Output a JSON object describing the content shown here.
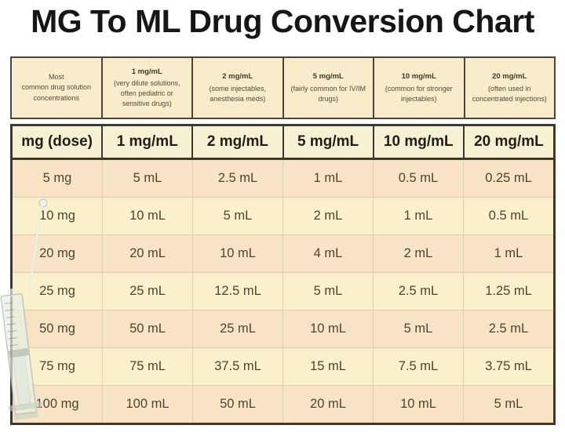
{
  "title": "MG To ML Drug Conversion Chart",
  "colors": {
    "background": "#ffffff",
    "title_text": "#161616",
    "description_bg": "#f8ecca",
    "header_bg": "#f7f1d4",
    "row_peach": "#f8e3c4",
    "row_cream": "#faf0cb",
    "border_dark": "#3b382f",
    "border_tan": "#ddcfab",
    "cell_text": "#4c4434"
  },
  "description_row": {
    "cells": [
      {
        "heading": "",
        "lines": [
          "Most",
          "common drug solution",
          "concentrations"
        ]
      },
      {
        "heading": "1 mg/mL",
        "lines": [
          "(very dilute solutions,",
          "often pediatric or",
          "sensitive drugs)"
        ]
      },
      {
        "heading": "2 mg/mL",
        "lines": [
          "(some injectables,",
          "anesthesia meds)"
        ]
      },
      {
        "heading": "5 mg/mL",
        "lines": [
          "(fairly common for IV/IM",
          "drugs)"
        ]
      },
      {
        "heading": "10 mg/mL",
        "lines": [
          "(common for stronger",
          "injectables)"
        ]
      },
      {
        "heading": "20 mg/mL",
        "lines": [
          "(often used in",
          "concentrated injections)"
        ]
      }
    ]
  },
  "chart_data": {
    "type": "table",
    "title": "MG To ML Drug Conversion Chart",
    "columns": [
      "mg (dose)",
      "1 mg/mL",
      "2 mg/mL",
      "5 mg/mL",
      "10 mg/mL",
      "20 mg/mL"
    ],
    "rows": [
      [
        "5 mg",
        "5 mL",
        "2.5 mL",
        "1 mL",
        "0.5 mL",
        "0.25 mL"
      ],
      [
        "10 mg",
        "10 mL",
        "5 mL",
        "2 mL",
        "1 mL",
        "0.5 mL"
      ],
      [
        "20 mg",
        "20 mL",
        "10 mL",
        "4 mL",
        "2 mL",
        "1 mL"
      ],
      [
        "25 mg",
        "25 mL",
        "12.5 mL",
        "5 mL",
        "2.5 mL",
        "1.25 mL"
      ],
      [
        "50 mg",
        "50 mL",
        "25 mL",
        "10 mL",
        "5 mL",
        "2.5 mL"
      ],
      [
        "75 mg",
        "75 mL",
        "37.5 mL",
        "15 mL",
        "7.5 mL",
        "3.75 mL"
      ],
      [
        "100 mg",
        "100 mL",
        "50 mL",
        "20 mL",
        "10 mL",
        "5 mL"
      ]
    ]
  },
  "decoration": {
    "syringe_icon": "syringe-image"
  }
}
